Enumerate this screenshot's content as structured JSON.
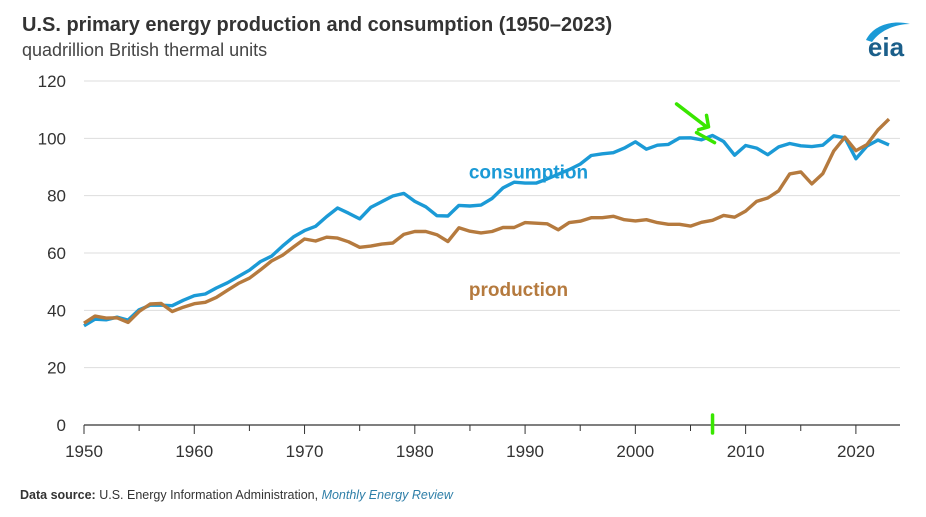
{
  "header": {
    "title": "U.S. primary energy production and consumption (1950–2023)",
    "subtitle": "quadrillion British thermal units"
  },
  "logo": {
    "text": "eia",
    "icon": "eia-logo-icon"
  },
  "footer": {
    "source_label": "Data source:",
    "source_text": "U.S. Energy Information Administration,",
    "source_publication": "Monthly Energy Review"
  },
  "annotations": {
    "arrow_color": "#39e600",
    "arrow_year": 2007,
    "marker_year": 2007
  },
  "chart_data": {
    "type": "line",
    "title": "U.S. primary energy production and consumption (1950–2023)",
    "ylabel": "quadrillion British thermal units",
    "xlim": [
      1950,
      2023
    ],
    "ylim": [
      0,
      120
    ],
    "yticks": [
      0,
      20,
      40,
      60,
      80,
      100,
      120
    ],
    "xticks": [
      1950,
      1960,
      1970,
      1980,
      1990,
      2000,
      2010,
      2020
    ],
    "grid": true,
    "legend": "none",
    "x": [
      1950,
      1951,
      1952,
      1953,
      1954,
      1955,
      1956,
      1957,
      1958,
      1959,
      1960,
      1961,
      1962,
      1963,
      1964,
      1965,
      1966,
      1967,
      1968,
      1969,
      1970,
      1971,
      1972,
      1973,
      1974,
      1975,
      1976,
      1977,
      1978,
      1979,
      1980,
      1981,
      1982,
      1983,
      1984,
      1985,
      1986,
      1987,
      1988,
      1989,
      1990,
      1991,
      1992,
      1993,
      1994,
      1995,
      1996,
      1997,
      1998,
      1999,
      2000,
      2001,
      2002,
      2003,
      2004,
      2005,
      2006,
      2007,
      2008,
      2009,
      2010,
      2011,
      2012,
      2013,
      2014,
      2015,
      2016,
      2017,
      2018,
      2019,
      2020,
      2021,
      2022,
      2023
    ],
    "series": [
      {
        "name": "consumption",
        "color": "#1b9ad6",
        "values": [
          34.6,
          36.9,
          36.7,
          37.6,
          36.6,
          40.2,
          41.8,
          41.8,
          41.6,
          43.5,
          45.1,
          45.7,
          47.8,
          49.6,
          51.8,
          54.0,
          57.0,
          58.9,
          62.4,
          65.6,
          67.8,
          69.3,
          72.7,
          75.7,
          73.9,
          71.9,
          75.9,
          77.9,
          79.9,
          80.8,
          78.0,
          76.1,
          73.0,
          72.9,
          76.6,
          76.4,
          76.7,
          79.0,
          82.7,
          84.7,
          84.4,
          84.4,
          85.8,
          87.5,
          89.1,
          91.0,
          94.0,
          94.6,
          95.0,
          96.6,
          98.8,
          96.2,
          97.6,
          97.9,
          100.1,
          100.2,
          99.5,
          101.0,
          98.9,
          94.1,
          97.5,
          96.6,
          94.3,
          97.0,
          98.2,
          97.4,
          97.1,
          97.6,
          100.9,
          100.2,
          92.9,
          97.3,
          99.4,
          97.7
        ]
      },
      {
        "name": "production",
        "color": "#b57a3e",
        "values": [
          35.5,
          38.0,
          37.3,
          37.4,
          35.8,
          39.6,
          42.2,
          42.4,
          39.6,
          41.1,
          42.3,
          42.8,
          44.5,
          47.0,
          49.4,
          51.2,
          54.1,
          57.2,
          59.2,
          62.1,
          64.9,
          64.2,
          65.5,
          65.2,
          63.9,
          62.0,
          62.4,
          63.1,
          63.5,
          66.5,
          67.5,
          67.5,
          66.4,
          64.0,
          68.8,
          67.6,
          67.0,
          67.5,
          68.9,
          68.9,
          70.6,
          70.4,
          70.2,
          68.1,
          70.6,
          71.1,
          72.3,
          72.3,
          72.8,
          71.6,
          71.2,
          71.6,
          70.6,
          70.0,
          70.0,
          69.4,
          70.7,
          71.4,
          73.1,
          72.5,
          74.6,
          78.0,
          79.2,
          81.7,
          87.6,
          88.3,
          84.1,
          87.7,
          95.6,
          100.4,
          95.7,
          97.8,
          102.9,
          106.7
        ]
      }
    ],
    "annotations": [
      {
        "text": "consumption",
        "x": 1982,
        "y": 86
      },
      {
        "text": "production",
        "x": 1982,
        "y": 45
      }
    ]
  }
}
